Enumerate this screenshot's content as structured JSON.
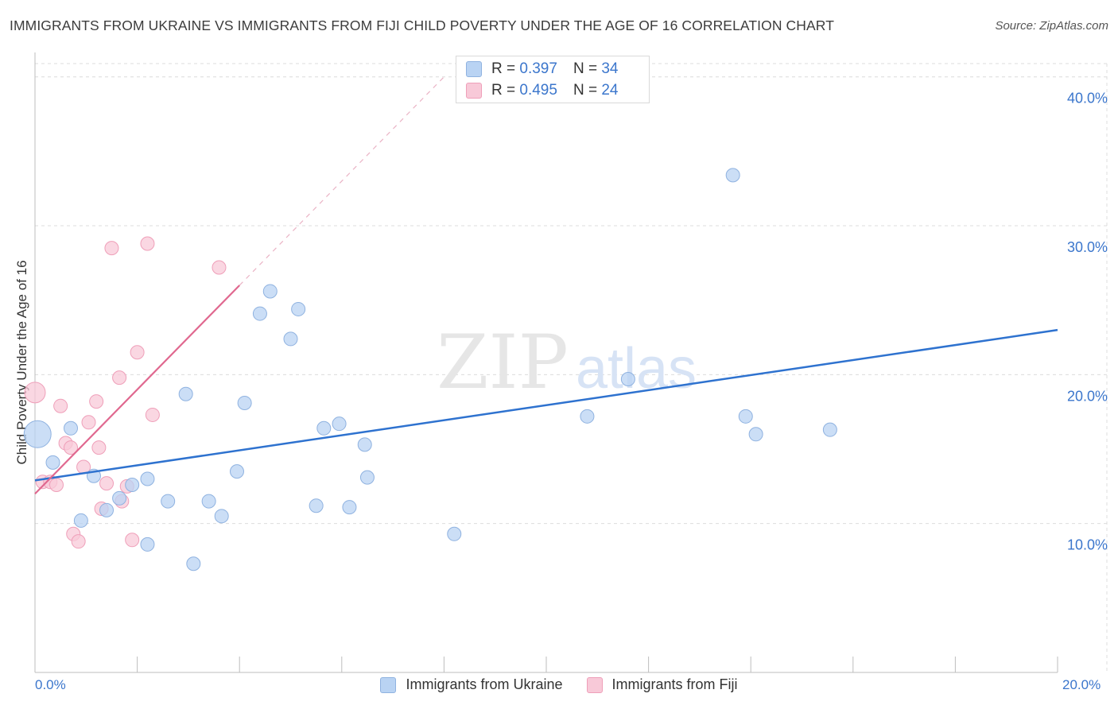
{
  "title": "IMMIGRANTS FROM UKRAINE VS IMMIGRANTS FROM FIJI CHILD POVERTY UNDER THE AGE OF 16 CORRELATION CHART",
  "source": "Source: ZipAtlas.com",
  "watermark": {
    "zip": "ZIP",
    "atlas": "atlas"
  },
  "colors": {
    "ukraine_fill": "#b9d3f3",
    "ukraine_stroke": "#8fb2e0",
    "ukraine_line": "#2e72cf",
    "fiji_fill": "#f8c9d8",
    "fiji_stroke": "#ef9fb9",
    "fiji_line": "#e0688f",
    "axis_label": "#3b76cc",
    "grid": "#dcdcdc"
  },
  "legend_top": {
    "rows": [
      {
        "r_label": "R =",
        "r_value": "0.397",
        "n_label": "N =",
        "n_value": "34"
      },
      {
        "r_label": "R =",
        "r_value": "0.495",
        "n_label": "N =",
        "n_value": "24"
      }
    ]
  },
  "legend_bottom": {
    "items": [
      {
        "label": "Immigrants from Ukraine"
      },
      {
        "label": "Immigrants from Fiji"
      }
    ]
  },
  "chart_data": {
    "type": "scatter",
    "title": "IMMIGRANTS FROM UKRAINE VS IMMIGRANTS FROM FIJI CHILD POVERTY UNDER THE AGE OF 16 CORRELATION CHART",
    "xlabel": "",
    "ylabel": "Child Poverty Under the Age of 16",
    "xlim": [
      0,
      20
    ],
    "ylim": [
      0,
      41
    ],
    "x_tick_labels": [
      "0.0%",
      "20.0%"
    ],
    "y_ticks": [
      10,
      20,
      30,
      40
    ],
    "y_tick_labels": [
      "10.0%",
      "20.0%",
      "30.0%",
      "40.0%"
    ],
    "grid": true,
    "series": [
      {
        "name": "Immigrants from Ukraine",
        "R": 0.397,
        "N": 34,
        "points": [
          {
            "x": 0.05,
            "y": 16.0,
            "size": "large"
          },
          {
            "x": 0.35,
            "y": 14.1
          },
          {
            "x": 0.7,
            "y": 16.4
          },
          {
            "x": 0.9,
            "y": 10.2
          },
          {
            "x": 1.15,
            "y": 13.2
          },
          {
            "x": 1.4,
            "y": 10.9
          },
          {
            "x": 1.65,
            "y": 11.7
          },
          {
            "x": 1.9,
            "y": 12.6
          },
          {
            "x": 2.2,
            "y": 8.6
          },
          {
            "x": 2.2,
            "y": 13.0
          },
          {
            "x": 2.6,
            "y": 11.5
          },
          {
            "x": 2.95,
            "y": 18.7
          },
          {
            "x": 3.1,
            "y": 7.3
          },
          {
            "x": 3.4,
            "y": 11.5
          },
          {
            "x": 3.65,
            "y": 10.5
          },
          {
            "x": 3.95,
            "y": 13.5
          },
          {
            "x": 4.1,
            "y": 18.1
          },
          {
            "x": 4.4,
            "y": 24.1
          },
          {
            "x": 4.6,
            "y": 25.6
          },
          {
            "x": 5.0,
            "y": 22.4
          },
          {
            "x": 5.15,
            "y": 24.4
          },
          {
            "x": 5.5,
            "y": 11.2
          },
          {
            "x": 5.65,
            "y": 16.4
          },
          {
            "x": 5.95,
            "y": 16.7
          },
          {
            "x": 6.15,
            "y": 11.1
          },
          {
            "x": 6.45,
            "y": 15.3
          },
          {
            "x": 6.5,
            "y": 13.1
          },
          {
            "x": 8.2,
            "y": 9.3
          },
          {
            "x": 10.8,
            "y": 17.2
          },
          {
            "x": 11.6,
            "y": 19.7
          },
          {
            "x": 13.65,
            "y": 33.4
          },
          {
            "x": 13.9,
            "y": 17.2
          },
          {
            "x": 14.1,
            "y": 16.0
          },
          {
            "x": 15.55,
            "y": 16.3
          }
        ],
        "trend": {
          "x": [
            0,
            20
          ],
          "y": [
            12.9,
            23.0
          ]
        }
      },
      {
        "name": "Immigrants from Fiji",
        "R": 0.495,
        "N": 24,
        "points": [
          {
            "x": 0.0,
            "y": 18.8,
            "size": "large"
          },
          {
            "x": 0.15,
            "y": 12.8
          },
          {
            "x": 0.3,
            "y": 12.8
          },
          {
            "x": 0.42,
            "y": 12.6
          },
          {
            "x": 0.5,
            "y": 17.9
          },
          {
            "x": 0.6,
            "y": 15.4
          },
          {
            "x": 0.7,
            "y": 15.1
          },
          {
            "x": 0.75,
            "y": 9.3
          },
          {
            "x": 0.85,
            "y": 8.8
          },
          {
            "x": 0.95,
            "y": 13.8
          },
          {
            "x": 1.05,
            "y": 16.8
          },
          {
            "x": 1.2,
            "y": 18.2
          },
          {
            "x": 1.25,
            "y": 15.1
          },
          {
            "x": 1.3,
            "y": 11.0
          },
          {
            "x": 1.4,
            "y": 12.7
          },
          {
            "x": 1.5,
            "y": 28.5
          },
          {
            "x": 1.65,
            "y": 19.8
          },
          {
            "x": 1.7,
            "y": 11.5
          },
          {
            "x": 1.8,
            "y": 12.5
          },
          {
            "x": 1.9,
            "y": 8.9
          },
          {
            "x": 2.0,
            "y": 21.5
          },
          {
            "x": 2.2,
            "y": 28.8
          },
          {
            "x": 2.3,
            "y": 17.3
          },
          {
            "x": 3.6,
            "y": 27.2
          }
        ],
        "trend": {
          "x": [
            0,
            4.0
          ],
          "y": [
            12.0,
            26.0
          ]
        },
        "trend_extrapolated": {
          "x": [
            4.0,
            8.0
          ],
          "y": [
            26.0,
            40.0
          ]
        }
      }
    ]
  }
}
